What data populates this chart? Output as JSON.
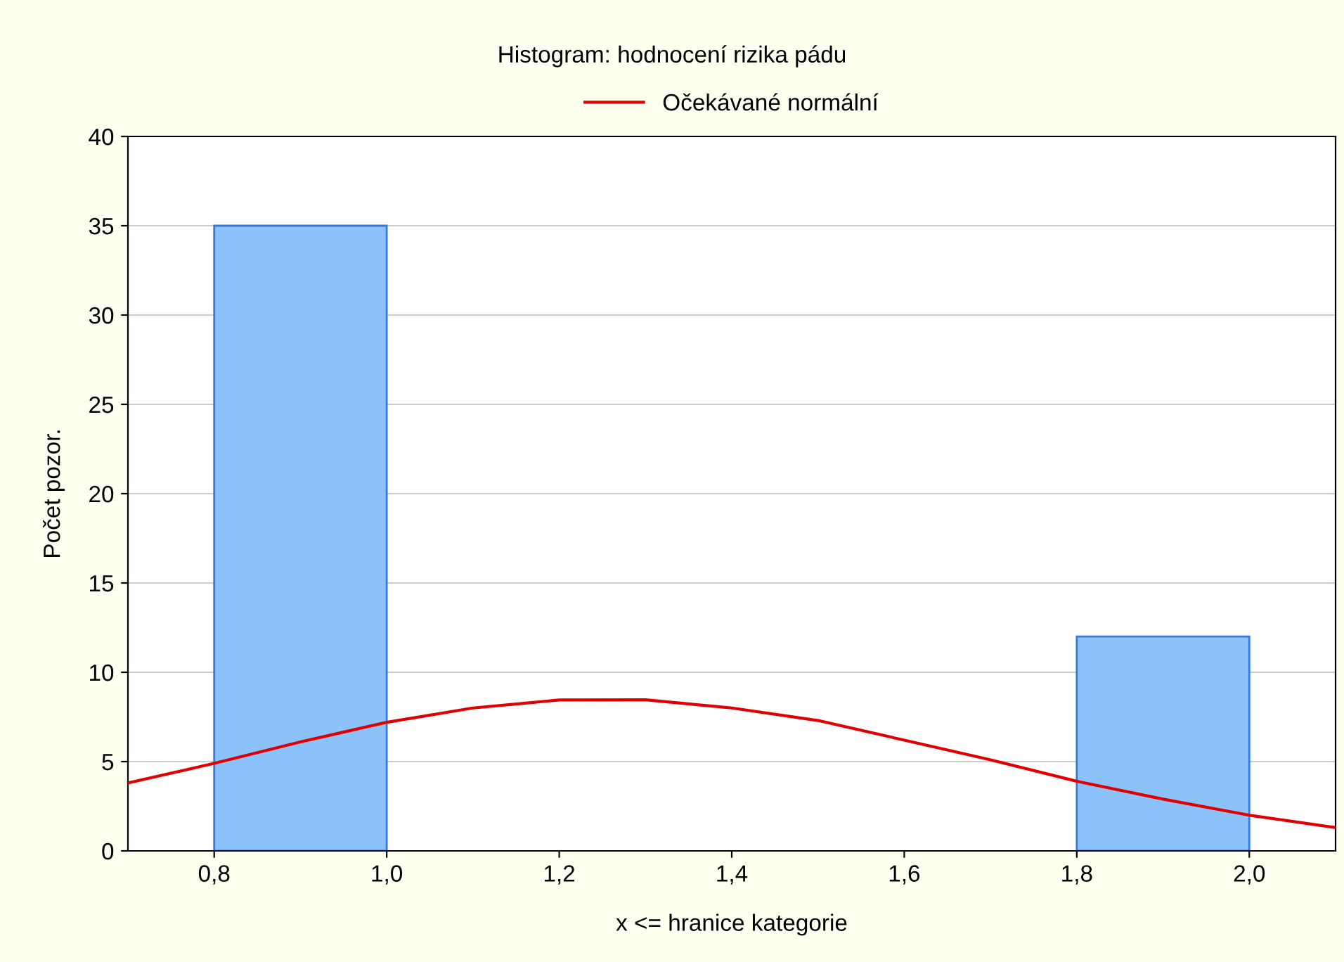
{
  "chart_data": {
    "type": "histogram",
    "title": "Histogram: hodnocení rizika pádu",
    "xlabel": "x <= hranice kategorie",
    "ylabel": "Počet pozor.",
    "bins": [
      0.8,
      1.0,
      1.2,
      1.4,
      1.6,
      1.8,
      2.0
    ],
    "values": [
      35,
      0,
      0,
      0,
      0,
      12
    ],
    "color": "#8cc2fa",
    "series": [
      {
        "name": "Očekávané normální",
        "type": "line",
        "color": "#e00000",
        "x": [
          0.7,
          0.8,
          0.9,
          1.0,
          1.1,
          1.2,
          1.3,
          1.4,
          1.5,
          1.6,
          1.7,
          1.8,
          1.9,
          2.0,
          2.1
        ],
        "values": [
          3.8,
          4.9,
          6.1,
          7.2,
          8.0,
          8.45,
          8.46,
          8.0,
          7.3,
          6.2,
          5.1,
          3.9,
          2.9,
          2.0,
          1.3
        ]
      }
    ],
    "xlim": [
      0.7,
      2.1
    ],
    "xticks": [
      {
        "value": 0.8,
        "label": "0,8"
      },
      {
        "value": 1.0,
        "label": "1,0"
      },
      {
        "value": 1.2,
        "label": "1,2"
      },
      {
        "value": 1.4,
        "label": "1,4"
      },
      {
        "value": 1.6,
        "label": "1,6"
      },
      {
        "value": 1.8,
        "label": "1,8"
      },
      {
        "value": 2.0,
        "label": "2,0"
      }
    ],
    "ylim": [
      0,
      40
    ],
    "yticks": [
      0,
      5,
      10,
      15,
      20,
      25,
      30,
      35,
      40
    ],
    "grid": "y",
    "legend": "top"
  }
}
